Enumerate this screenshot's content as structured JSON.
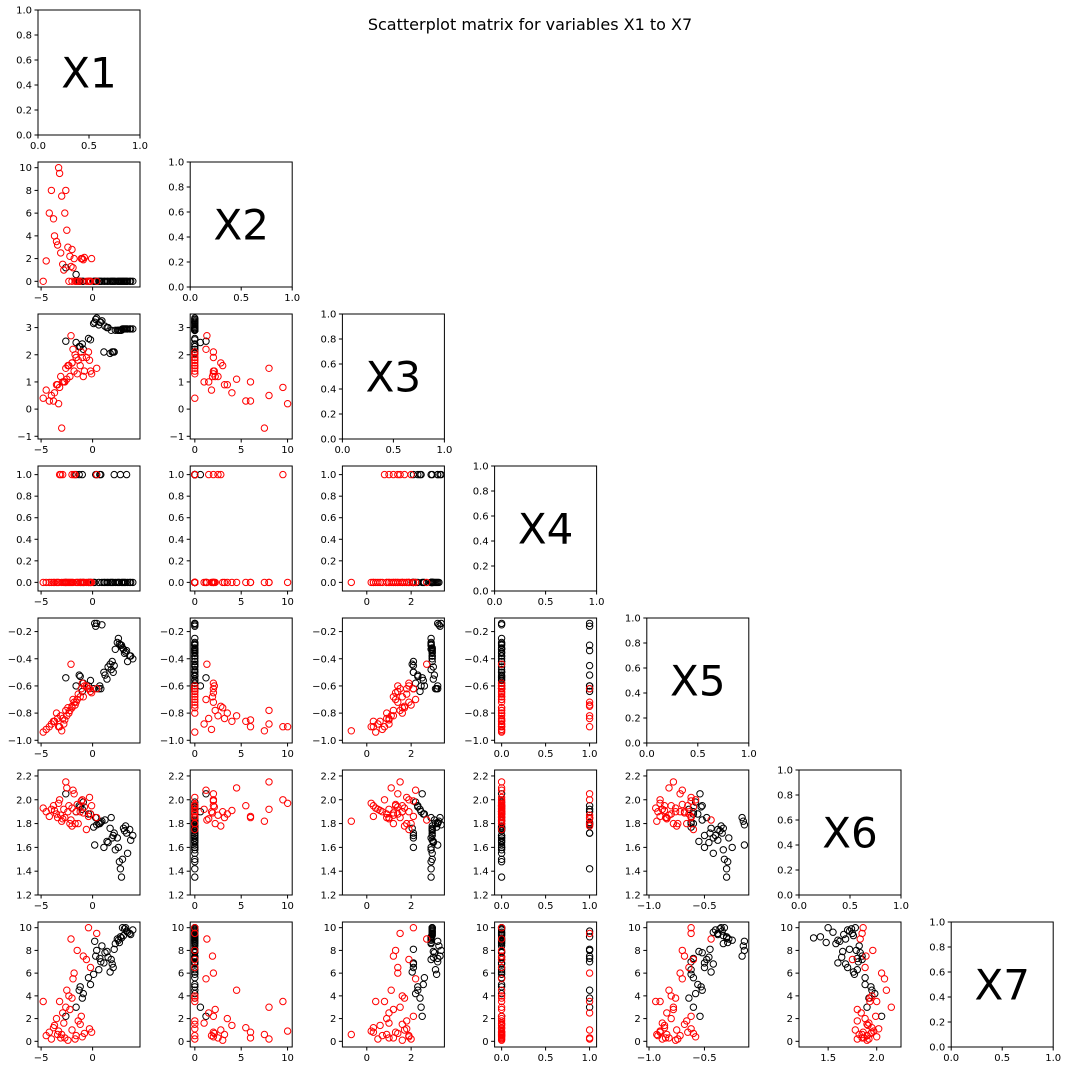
{
  "chart_data": {
    "type": "scatter",
    "title": "Scatterplot matrix for variables X1 to X7",
    "variables": [
      "X1",
      "X2",
      "X3",
      "X4",
      "X5",
      "X6",
      "X7"
    ],
    "layout": "lower-triangle",
    "marker": "open-circle",
    "series_colors": {
      "black": "#000000",
      "red": "#ff0000"
    },
    "diagonal": {
      "xlim": [
        0,
        1
      ],
      "ylim": [
        0,
        1
      ],
      "xticks": [
        0,
        0.5,
        1
      ],
      "xticklabels": [
        "0.0",
        "0.5",
        "1.0"
      ],
      "yticks": [
        0,
        0.2,
        0.4,
        0.6,
        0.8,
        1
      ],
      "yticklabels": [
        "0.0",
        "0.2",
        "0.4",
        "0.6",
        "0.8",
        "1.0"
      ]
    },
    "axes": {
      "X1": {
        "lim": [
          -5.3,
          4.6
        ],
        "ticks": [
          -5,
          0
        ],
        "ticklabels": [
          "−5",
          "0"
        ]
      },
      "X2": {
        "lim": [
          -0.5,
          10.5
        ],
        "ticks": [
          0,
          2,
          4,
          6,
          8,
          10
        ],
        "ticklabels": [
          "0",
          "2",
          "4",
          "6",
          "8",
          "10"
        ],
        "xticks": [
          0,
          5,
          10
        ],
        "xticklabels": [
          "0",
          "5",
          "10"
        ]
      },
      "X3": {
        "lim": [
          -1.1,
          3.5
        ],
        "ticks": [
          -1,
          0,
          1,
          2,
          3
        ],
        "ticklabels": [
          "−1",
          "0",
          "1",
          "2",
          "3"
        ],
        "xticks": [
          0,
          2
        ],
        "xticklabels": [
          "0",
          "2"
        ]
      },
      "X4": {
        "lim": [
          -0.08,
          1.08
        ],
        "ticks": [
          0,
          0.2,
          0.4,
          0.6,
          0.8,
          1
        ],
        "ticklabels": [
          "0.0",
          "0.2",
          "0.4",
          "0.6",
          "0.8",
          "1.0"
        ],
        "xticks": [
          0,
          0.5,
          1
        ],
        "xticklabels": [
          "0.0",
          "0.5",
          "1.0"
        ]
      },
      "X5": {
        "lim": [
          -1.02,
          -0.1
        ],
        "ticks": [
          -1,
          -0.8,
          -0.6,
          -0.4,
          -0.2
        ],
        "ticklabels": [
          "−1.0",
          "−0.8",
          "−0.6",
          "−0.4",
          "−0.2"
        ],
        "xticks": [
          -1,
          -0.5
        ],
        "xticklabels": [
          "−1.0",
          "−0.5"
        ]
      },
      "X6": {
        "lim": [
          1.2,
          2.25
        ],
        "ticks": [
          1.2,
          1.4,
          1.6,
          1.8,
          2,
          2.2
        ],
        "ticklabels": [
          "1.2",
          "1.4",
          "1.6",
          "1.8",
          "2.0",
          "2.2"
        ],
        "xticks": [
          1.5,
          2
        ],
        "xticklabels": [
          "1.5",
          "2.0"
        ]
      },
      "X7": {
        "lim": [
          -0.5,
          10.5
        ],
        "ticks": [
          0,
          2,
          4,
          6,
          8,
          10
        ],
        "ticklabels": [
          "0",
          "2",
          "4",
          "6",
          "8",
          "10"
        ],
        "xticks": [
          -5,
          0
        ],
        "xticklabels": [
          "−5",
          "0"
        ]
      }
    },
    "groups": {
      "black": {
        "X1": [
          3.6,
          1.8,
          0.2,
          -1.3,
          2.9,
          0.6,
          2.1,
          3.9,
          -0.4,
          1.4,
          2.7,
          0.9,
          3.2,
          -1.0,
          1.1,
          2.4,
          3.4,
          0.3,
          -2.6,
          1.7,
          2.2,
          0.8,
          3.1,
          -0.9,
          1.5,
          2.8,
          0.4,
          2.0,
          3.7,
          -1.6,
          1.2,
          2.5,
          0.1,
          3.3,
          -0.2,
          1.9,
          2.6,
          0.7,
          3.0,
          -1.2
        ],
        "X2": [
          0,
          0,
          0,
          0,
          0,
          0,
          0,
          0,
          0,
          0,
          0,
          0,
          0,
          0,
          0,
          0,
          0,
          0,
          1.2,
          0,
          0,
          0,
          0,
          0,
          0,
          0,
          0,
          0,
          0,
          0.6,
          0,
          0,
          0,
          0,
          0,
          0,
          0,
          0,
          0,
          0
        ],
        "X3": [
          2.95,
          2.9,
          3.2,
          2.3,
          2.95,
          3.1,
          2.1,
          2.95,
          2.6,
          3.0,
          2.9,
          3.25,
          2.95,
          2.4,
          2.1,
          2.9,
          2.95,
          3.3,
          2.5,
          2.05,
          2.9,
          3.2,
          2.95,
          2.2,
          3.0,
          2.9,
          3.35,
          2.1,
          2.95,
          2.45,
          3.05,
          2.9,
          3.15,
          2.95,
          2.55,
          2.1,
          2.9,
          3.2,
          2.95,
          2.3
        ],
        "X4": [
          0,
          0,
          0,
          1,
          0,
          0,
          1,
          0,
          0,
          0,
          1,
          0,
          0,
          1,
          0,
          0,
          0,
          1,
          0,
          0,
          0,
          1,
          0,
          0,
          0,
          0,
          1,
          0,
          0,
          1,
          0,
          0,
          0,
          1,
          0,
          0,
          0,
          1,
          0,
          0
        ],
        "X5": [
          -0.38,
          -0.48,
          -0.14,
          -0.52,
          -0.32,
          -0.62,
          -0.45,
          -0.4,
          -0.6,
          -0.55,
          -0.3,
          -0.15,
          -0.35,
          -0.64,
          -0.5,
          -0.28,
          -0.42,
          -0.16,
          -0.54,
          -0.44,
          -0.33,
          -0.62,
          -0.36,
          -0.58,
          -0.46,
          -0.3,
          -0.14,
          -0.5,
          -0.38,
          -0.6,
          -0.52,
          -0.25,
          -0.62,
          -0.34,
          -0.56,
          -0.42,
          -0.29,
          -0.6,
          -0.33,
          -0.53
        ],
        "X6": [
          1.75,
          1.85,
          1.62,
          1.95,
          1.5,
          1.8,
          1.72,
          1.7,
          1.88,
          1.65,
          1.42,
          1.82,
          1.78,
          1.92,
          1.6,
          1.68,
          1.55,
          1.85,
          2.05,
          1.76,
          1.58,
          1.81,
          1.74,
          1.98,
          1.64,
          1.35,
          1.79,
          1.7,
          1.66,
          1.9,
          1.83,
          1.6,
          1.77,
          1.72,
          1.88,
          1.68,
          1.48,
          1.8,
          1.76,
          1.94
        ],
        "X7": [
          9.5,
          7.2,
          8.8,
          4.5,
          10.0,
          6.3,
          8.1,
          9.8,
          5.6,
          7.9,
          9.2,
          8.4,
          10.0,
          3.8,
          6.9,
          9.0,
          9.6,
          7.5,
          2.2,
          6.1,
          8.6,
          7.0,
          9.9,
          4.2,
          7.4,
          9.1,
          8.0,
          6.5,
          9.4,
          3.0,
          7.8,
          8.9,
          5.9,
          9.7,
          5.0,
          6.8,
          8.7,
          7.3,
          9.3,
          4.8
        ]
      },
      "red": {
        "X1": [
          -4.5,
          -3.8,
          -3.2,
          -2.7,
          -2.2,
          -1.8,
          -1.2,
          -0.6,
          -0.1,
          0.4,
          -4.0,
          -3.5,
          -3.0,
          -2.5,
          -2.0,
          -1.5,
          -1.0,
          -0.4,
          -4.8,
          -3.3,
          -2.9,
          -2.4,
          -1.9,
          -1.4,
          -0.8,
          -0.2,
          -3.7,
          -3.1,
          -2.6,
          -2.1,
          -1.6,
          -1.1,
          -4.2,
          -2.8,
          -2.3,
          -1.7,
          -0.9,
          -0.3,
          -3.4,
          -2.0
        ],
        "X2": [
          1.8,
          5.5,
          9.5,
          6.0,
          2.2,
          2.0,
          0.0,
          0.0,
          2.0,
          0.0,
          8.0,
          3.5,
          7.5,
          4.5,
          2.8,
          0.0,
          2.0,
          0.0,
          0.0,
          10.0,
          1.5,
          3.0,
          1.2,
          0.0,
          2.1,
          0.0,
          4.0,
          2.5,
          8.0,
          1.3,
          0.0,
          2.0,
          6.0,
          1.0,
          0.0,
          0.0,
          1.9,
          0.0,
          3.2,
          0.0
        ],
        "X3": [
          0.7,
          0.3,
          0.8,
          1.0,
          1.2,
          1.4,
          1.6,
          1.9,
          1.3,
          1.5,
          0.5,
          0.9,
          -0.7,
          1.1,
          1.7,
          1.3,
          1.9,
          2.1,
          0.4,
          0.2,
          1.0,
          1.6,
          2.2,
          1.8,
          1.4,
          1.4,
          0.6,
          1.2,
          1.5,
          2.7,
          1.9,
          2.1,
          0.3,
          1.0,
          1.6,
          2.0,
          1.2,
          1.8,
          0.9,
          1.7
        ],
        "X4": [
          0,
          0,
          1,
          0,
          0,
          1,
          0,
          0,
          0,
          1,
          0,
          0,
          0,
          0,
          1,
          0,
          0,
          0,
          0,
          0,
          1,
          0,
          0,
          0,
          0,
          0,
          0,
          1,
          0,
          0,
          0,
          0,
          0,
          0,
          0,
          1,
          0,
          0,
          0,
          0
        ],
        "X5": [
          -0.92,
          -0.86,
          -0.9,
          -0.85,
          -0.78,
          -0.72,
          -0.68,
          -0.6,
          -0.65,
          -0.62,
          -0.88,
          -0.8,
          -0.93,
          -0.82,
          -0.75,
          -0.7,
          -0.58,
          -0.62,
          -0.94,
          -0.9,
          -0.84,
          -0.76,
          -0.7,
          -0.66,
          -0.6,
          -0.64,
          -0.86,
          -0.82,
          -0.78,
          -0.44,
          -0.72,
          -0.62,
          -0.9,
          -0.88,
          -0.8,
          -0.74,
          -0.68,
          -0.62,
          -0.84,
          -0.76
        ],
        "X6": [
          1.9,
          1.95,
          2.0,
          1.85,
          1.8,
          2.05,
          1.9,
          1.75,
          1.95,
          1.85,
          1.92,
          1.88,
          1.82,
          2.1,
          1.78,
          1.96,
          2.0,
          1.86,
          1.93,
          1.97,
          1.84,
          1.9,
          2.08,
          1.8,
          1.94,
          1.88,
          1.91,
          1.87,
          2.15,
          1.83,
          1.9,
          1.99,
          1.86,
          1.92,
          1.95,
          1.8,
          1.89,
          2.02,
          1.85,
          1.93
        ],
        "X7": [
          0.5,
          1.2,
          3.5,
          0.3,
          2.8,
          6.0,
          1.5,
          7.2,
          0.8,
          9.5,
          0.2,
          2.0,
          0.6,
          4.5,
          1.0,
          8.0,
          0.4,
          10.0,
          3.5,
          0.9,
          2.5,
          0.1,
          5.5,
          1.8,
          0.7,
          6.5,
          1.4,
          0.3,
          3.0,
          9.0,
          0.5,
          2.2,
          0.8,
          1.6,
          4.0,
          0.2,
          7.5,
          1.1,
          0.6,
          3.8
        ]
      }
    }
  }
}
